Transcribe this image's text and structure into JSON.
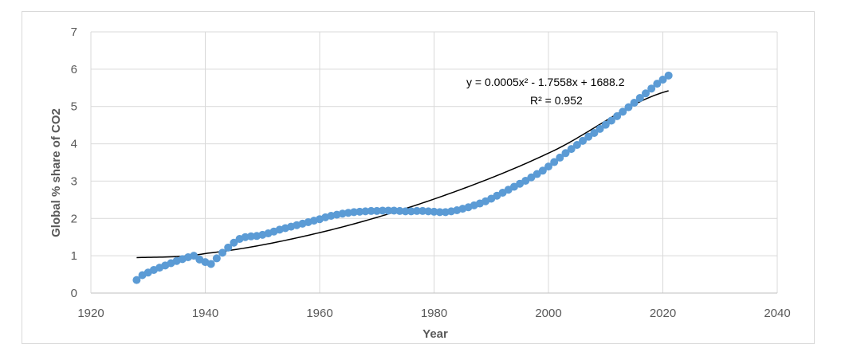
{
  "chart_data": {
    "type": "scatter",
    "xlabel": "Year",
    "ylabel": "Global % share of CO2",
    "xlim": [
      1920,
      2040
    ],
    "ylim": [
      0,
      7
    ],
    "x_ticks": [
      1920,
      1940,
      1960,
      1980,
      2000,
      2020,
      2040
    ],
    "y_ticks": [
      0,
      1,
      2,
      3,
      4,
      5,
      6,
      7
    ],
    "grid": "vertical and horizontal",
    "legend": "none",
    "marker_color": "#5b9bd5",
    "trend_color": "#000000",
    "series": [
      {
        "x": [
          1928,
          1929,
          1930,
          1931,
          1932,
          1933,
          1934,
          1935,
          1936,
          1937,
          1938,
          1939,
          1940,
          1941,
          1942,
          1943,
          1944,
          1945,
          1946,
          1947,
          1948,
          1949,
          1950,
          1951,
          1952,
          1953,
          1954,
          1955,
          1956,
          1957,
          1958,
          1959,
          1960,
          1961,
          1962,
          1963,
          1964,
          1965,
          1966,
          1967,
          1968,
          1969,
          1970,
          1971,
          1972,
          1973,
          1974,
          1975,
          1976,
          1977,
          1978,
          1979,
          1980,
          1981,
          1982,
          1983,
          1984,
          1985,
          1986,
          1987,
          1988,
          1989,
          1990,
          1991,
          1992,
          1993,
          1994,
          1995,
          1996,
          1997,
          1998,
          1999,
          2000,
          2001,
          2002,
          2003,
          2004,
          2005,
          2006,
          2007,
          2008,
          2009,
          2010,
          2011,
          2012,
          2013,
          2014,
          2015,
          2016,
          2017,
          2018,
          2019,
          2020,
          2021
        ],
        "y": [
          0.35,
          0.48,
          0.55,
          0.62,
          0.68,
          0.74,
          0.8,
          0.86,
          0.91,
          0.96,
          1.0,
          0.9,
          0.83,
          0.78,
          0.93,
          1.08,
          1.22,
          1.35,
          1.45,
          1.5,
          1.52,
          1.53,
          1.56,
          1.6,
          1.65,
          1.7,
          1.74,
          1.78,
          1.82,
          1.86,
          1.9,
          1.94,
          1.98,
          2.03,
          2.07,
          2.1,
          2.13,
          2.15,
          2.17,
          2.18,
          2.19,
          2.2,
          2.2,
          2.21,
          2.21,
          2.21,
          2.2,
          2.19,
          2.19,
          2.2,
          2.2,
          2.19,
          2.18,
          2.17,
          2.17,
          2.19,
          2.22,
          2.26,
          2.3,
          2.35,
          2.4,
          2.46,
          2.53,
          2.61,
          2.69,
          2.77,
          2.85,
          2.93,
          3.01,
          3.1,
          3.19,
          3.28,
          3.39,
          3.51,
          3.63,
          3.75,
          3.86,
          3.97,
          4.08,
          4.19,
          4.29,
          4.4,
          4.51,
          4.62,
          4.74,
          4.86,
          4.98,
          5.1,
          5.23,
          5.35,
          5.48,
          5.61,
          5.72,
          5.83
        ]
      }
    ],
    "trendline": {
      "type": "polynomial",
      "equation": "y = 0.0005x² - 1.7558x + 1688.2",
      "r_squared": "R² = 0.952",
      "x_start": 1928,
      "x_end": 2021,
      "samples_y": {
        "1928": 0.95,
        "1940": 1.06,
        "1960": 1.62,
        "1980": 2.52,
        "2000": 3.75,
        "2021": 5.42
      }
    }
  }
}
